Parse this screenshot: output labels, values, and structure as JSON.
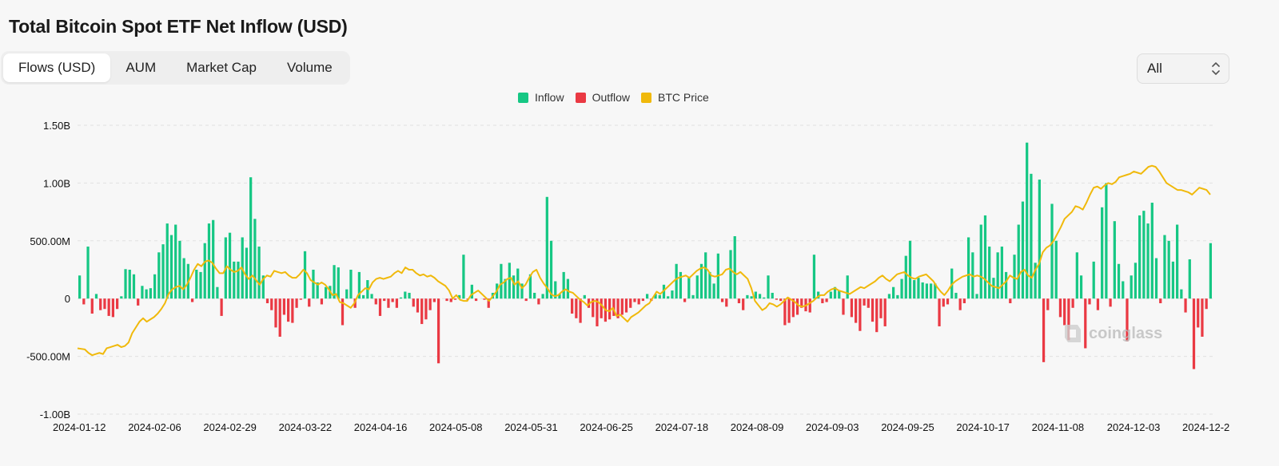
{
  "page": {
    "title": "Total Bitcoin Spot ETF Net Inflow (USD)",
    "tabs": [
      {
        "label": "Flows (USD)",
        "active": true
      },
      {
        "label": "AUM",
        "active": false
      },
      {
        "label": "Market Cap",
        "active": false
      },
      {
        "label": "Volume",
        "active": false
      }
    ],
    "range_select": {
      "value": "All",
      "icon": "chevron-updown-icon"
    },
    "watermark": "coinglass",
    "watermark_icon": "coinglass-logo-icon",
    "colors": {
      "inflow": "#16c784",
      "outflow": "#ea3943",
      "price": "#f0b90b",
      "grid": "#e2e2e2",
      "background": "#f7f7f7"
    }
  },
  "chart_data": {
    "type": "bar",
    "legend": [
      "Inflow",
      "Outflow",
      "BTC Price"
    ],
    "legend_position": "top-center",
    "grid": true,
    "y_ticks": [
      "1.50B",
      "1.00B",
      "500.00M",
      "0",
      "-500.00M",
      "-1.00B"
    ],
    "y_tick_values": [
      1500,
      1000,
      500,
      0,
      -500,
      -1000
    ],
    "ylim": [
      -1000,
      1500
    ],
    "y_unit": "M USD",
    "x_ticks": [
      "2024-01-12",
      "2024-02-06",
      "2024-02-29",
      "2024-03-22",
      "2024-04-16",
      "2024-05-08",
      "2024-05-31",
      "2024-06-25",
      "2024-07-18",
      "2024-08-09",
      "2024-09-03",
      "2024-09-25",
      "2024-10-17",
      "2024-11-08",
      "2024-12-03",
      "2024-12-2"
    ],
    "series": [
      {
        "name": "Inflow / Outflow",
        "values": [
          200,
          -50,
          450,
          -130,
          40,
          -100,
          -90,
          -150,
          -160,
          -90,
          20,
          255,
          250,
          210,
          -60,
          110,
          80,
          90,
          210,
          400,
          470,
          650,
          550,
          640,
          500,
          350,
          300,
          -30,
          250,
          230,
          480,
          650,
          680,
          100,
          -150,
          530,
          570,
          320,
          320,
          530,
          440,
          1050,
          690,
          450,
          200,
          -40,
          -100,
          -250,
          -330,
          -140,
          -200,
          -210,
          -80,
          -10,
          410,
          -70,
          250,
          140,
          -50,
          100,
          110,
          290,
          270,
          -230,
          80,
          250,
          -80,
          230,
          30,
          160,
          40,
          -50,
          -150,
          -20,
          -80,
          -30,
          -80,
          10,
          60,
          50,
          -70,
          -120,
          -220,
          -180,
          -100,
          -30,
          -560,
          0,
          -20,
          -30,
          -10,
          30,
          380,
          -10,
          120,
          -20,
          0,
          -10,
          -80,
          50,
          130,
          300,
          170,
          310,
          200,
          260,
          130,
          -20,
          210,
          50,
          -50,
          40,
          880,
          500,
          150,
          40,
          230,
          170,
          -130,
          -170,
          -210,
          30,
          -80,
          -160,
          -240,
          -170,
          -200,
          -180,
          -150,
          -170,
          -140,
          -120,
          -80,
          -30,
          -50,
          -20,
          40,
          -20,
          40,
          30,
          120,
          20,
          70,
          300,
          230,
          -30,
          180,
          30,
          200,
          300,
          400,
          230,
          130,
          390,
          -30,
          -70,
          420,
          540,
          -40,
          -100,
          30,
          20,
          60,
          40,
          10,
          200,
          50,
          -10,
          -20,
          -230,
          -210,
          -160,
          -140,
          -80,
          -110,
          -120,
          380,
          60,
          -40,
          -30,
          60,
          100,
          70,
          -140,
          200,
          -160,
          -210,
          -280,
          -60,
          -80,
          -200,
          -290,
          -170,
          -240,
          40,
          100,
          30,
          170,
          370,
          500,
          160,
          180,
          140,
          130,
          130,
          130,
          -240,
          -70,
          -50,
          260,
          50,
          -100,
          -40,
          530,
          400,
          40,
          640,
          720,
          450,
          180,
          400,
          450,
          230,
          -40,
          380,
          640,
          840,
          1350,
          1080,
          310,
          1030,
          -550,
          -100,
          820,
          500,
          -160,
          -230,
          -360,
          -80,
          400,
          200,
          -430,
          -50,
          320,
          -100,
          790,
          1000,
          -70,
          670,
          300,
          150,
          -370,
          200,
          310,
          720,
          760,
          650,
          830,
          350,
          -40,
          550,
          500,
          320,
          640,
          80,
          -120,
          340,
          -610,
          -250,
          -330,
          -90,
          480
        ],
        "color_positive": "#16c784",
        "color_negative": "#ea3943"
      },
      {
        "name": "BTC Price",
        "type": "line",
        "color": "#f0b90b",
        "y_equiv_values": [
          -430,
          -435,
          -440,
          -470,
          -490,
          -480,
          -470,
          -480,
          -430,
          -420,
          -410,
          -400,
          -420,
          -410,
          -380,
          -300,
          -250,
          -200,
          -170,
          -200,
          -180,
          -160,
          -130,
          -90,
          -40,
          40,
          80,
          100,
          110,
          80,
          120,
          180,
          250,
          300,
          280,
          320,
          330,
          310,
          260,
          220,
          220,
          280,
          250,
          230,
          240,
          270,
          210,
          170,
          200,
          160,
          120,
          170,
          200,
          190,
          240,
          230,
          220,
          230,
          200,
          180,
          180,
          210,
          250,
          220,
          160,
          140,
          120,
          140,
          120,
          80,
          30,
          40,
          -30,
          -40,
          -60,
          -80,
          -40,
          30,
          60,
          90,
          80,
          140,
          170,
          180,
          170,
          180,
          190,
          220,
          240,
          220,
          270,
          250,
          250,
          220,
          200,
          210,
          190,
          200,
          180,
          150,
          130,
          110,
          70,
          0,
          30,
          -10,
          -20,
          -20,
          30,
          50,
          70,
          40,
          10,
          -20,
          20,
          60,
          120,
          140,
          170,
          180,
          120,
          150,
          90,
          120,
          180,
          230,
          250,
          180,
          130,
          90,
          40,
          20,
          30,
          60,
          80,
          60,
          50,
          20,
          -10,
          -30,
          -60,
          -30,
          -20,
          -30,
          -60,
          -100,
          -110,
          -80,
          -150,
          -140,
          -170,
          -200,
          -160,
          -140,
          -120,
          -90,
          -60,
          -40,
          10,
          60,
          40,
          70,
          100,
          130,
          160,
          180,
          190,
          200,
          180,
          210,
          240,
          260,
          270,
          250,
          200,
          190,
          200,
          210,
          250,
          260,
          230,
          210,
          230,
          200,
          170,
          90,
          -20,
          -60,
          -100,
          -80,
          -40,
          -50,
          -70,
          -50,
          -20,
          10,
          -10,
          -30,
          -60,
          -70,
          -60,
          -40,
          -20,
          10,
          30,
          30,
          60,
          80,
          90,
          70,
          60,
          50,
          40,
          60,
          80,
          100,
          90,
          110,
          130,
          150,
          180,
          200,
          170,
          150,
          180,
          210,
          220,
          230,
          200,
          180,
          170,
          190,
          200,
          210,
          180,
          150,
          100,
          60,
          30,
          70,
          120,
          150,
          170,
          190,
          200,
          210,
          190,
          200,
          190,
          170,
          140,
          110,
          100,
          90,
          120,
          150,
          200,
          180,
          170,
          230,
          250,
          200,
          180,
          250,
          300,
          400,
          440,
          460,
          500,
          560,
          620,
          690,
          720,
          750,
          800,
          790,
          770,
          830,
          900,
          960,
          970,
          950,
          980,
          1000,
          990,
          1010,
          1050,
          1060,
          1070,
          1080,
          1100,
          1090,
          1080,
          1110,
          1140,
          1150,
          1140,
          1100,
          1050,
          1000,
          980,
          960,
          940,
          940,
          930,
          920,
          900,
          930,
          960,
          950,
          940,
          900
        ]
      }
    ]
  }
}
